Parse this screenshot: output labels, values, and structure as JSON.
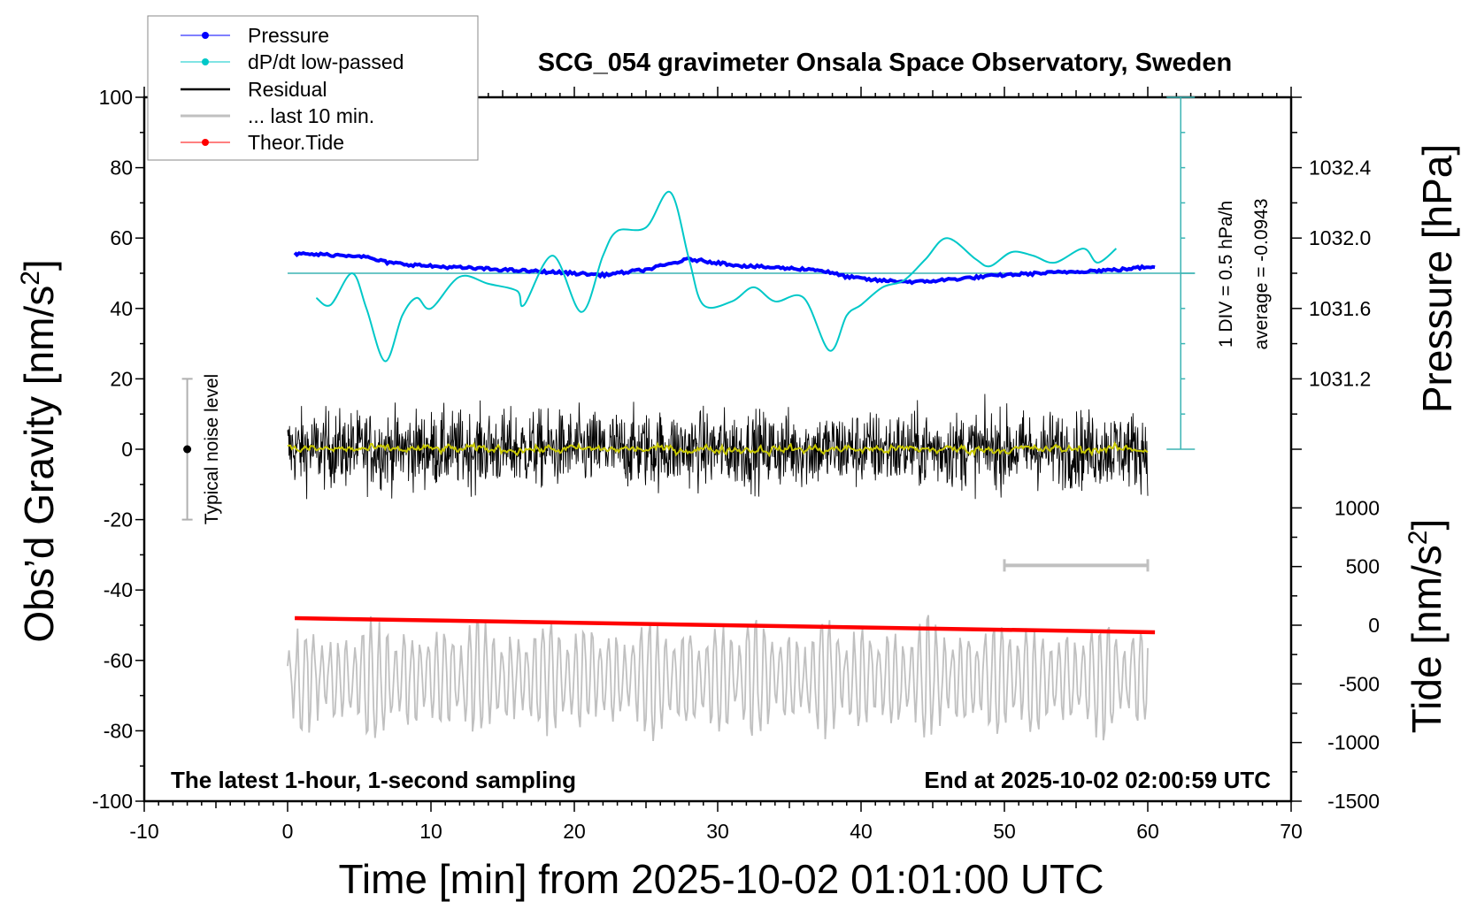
{
  "chart_data": {
    "type": "line",
    "title": "SCG_054 gravimeter Onsala Space Observatory, Sweden",
    "xlabel": "Time [min] from 2025-10-02 01:01:00 UTC",
    "ylabel": "Obs'd Gravity [nm/s2]",
    "ylabel_right_top": "Pressure [hPa]",
    "ylabel_right_bottom": "Tide [nm/s2]",
    "xlim": [
      -10,
      70
    ],
    "ylim": [
      -100,
      100
    ],
    "xticks": [
      "-10",
      "0",
      "10",
      "20",
      "30",
      "40",
      "50",
      "60",
      "70"
    ],
    "yticks": [
      "100",
      "80",
      "60",
      "40",
      "20",
      "0",
      "-20",
      "-40",
      "-60",
      "-80",
      "-100"
    ],
    "pressure_ticks": [
      "1032.4",
      "1032.0",
      "1031.6",
      "1031.2"
    ],
    "tide_ticks": [
      "1000",
      "500",
      "0",
      "-500",
      "-1000",
      "-1500"
    ],
    "legend_position": "top-left",
    "legend": [
      "Pressure",
      "dP/dt low-passed",
      "Residual",
      "... last 10 min.",
      "Theor.Tide"
    ],
    "annotations": {
      "left_bottom": "The latest 1-hour, 1-second sampling",
      "right_bottom": "End at 2025-10-02 02:00:59 UTC",
      "noise_label": "Typical noise level",
      "div_label": "1 DIV = 0.5 hPa/h",
      "average_label": "average = -0.0943"
    },
    "dpdt_average": -0.0943,
    "series": [
      {
        "name": "Pressure",
        "unit": "hPa",
        "color": "#0000ff",
        "x": [
          0.5,
          5,
          7,
          10,
          15,
          20,
          22,
          25,
          28,
          32,
          37,
          39,
          41,
          44,
          47,
          50,
          55,
          58,
          60.5
        ],
        "values": [
          1031.91,
          1031.9,
          1031.86,
          1031.84,
          1031.82,
          1031.8,
          1031.79,
          1031.82,
          1031.88,
          1031.84,
          1031.82,
          1031.78,
          1031.76,
          1031.75,
          1031.77,
          1031.79,
          1031.81,
          1031.82,
          1031.84
        ]
      },
      {
        "name": "dP/dt low-passed",
        "unit": "hPa/h",
        "color": "#00c8c8",
        "x": [
          2,
          3,
          4.5,
          5.5,
          6.8,
          8,
          9,
          10,
          12,
          14,
          16,
          16.5,
          18.5,
          20.5,
          22,
          23,
          25,
          26.7,
          28,
          29,
          31,
          32.5,
          34,
          36,
          37.8,
          39,
          40,
          41.5,
          43,
          44.5,
          46,
          48,
          49,
          50.5,
          52,
          53.5,
          55.5,
          56.5,
          57.8
        ],
        "values": [
          -0.444,
          -0.544,
          -0.094,
          -0.594,
          -1.344,
          -0.694,
          -0.444,
          -0.594,
          -0.144,
          -0.244,
          -0.344,
          -0.544,
          0.156,
          -0.644,
          0.156,
          0.506,
          0.556,
          1.056,
          0.106,
          -0.544,
          -0.494,
          -0.294,
          -0.494,
          -0.444,
          -1.194,
          -0.694,
          -0.544,
          -0.294,
          -0.194,
          0.106,
          0.406,
          0.106,
          0.006,
          0.206,
          0.156,
          0.056,
          0.256,
          0.056,
          0.256
        ]
      },
      {
        "name": "Residual",
        "unit": "nm/s2",
        "color": "#000000",
        "x_range": [
          0,
          60
        ],
        "amplitude": 12
      },
      {
        "name": "Residual low-passed",
        "unit": "nm/s2",
        "color": "#c8c800",
        "x_range": [
          0,
          60
        ],
        "amplitude": 2
      },
      {
        "name": "... last 10 min.",
        "unit": "nm/s2",
        "color": "#c0c0c0",
        "offset": -65,
        "amplitude": 15
      },
      {
        "name": "Theor.Tide",
        "unit": "nm/s2",
        "color": "#ff0000",
        "x": [
          0.5,
          60.5
        ],
        "values": [
          60,
          -60
        ]
      }
    ],
    "noise_bar": {
      "x": -7,
      "range": [
        -20,
        20
      ]
    },
    "ten_min_scale": {
      "x": [
        50,
        60
      ],
      "y": -33
    }
  }
}
